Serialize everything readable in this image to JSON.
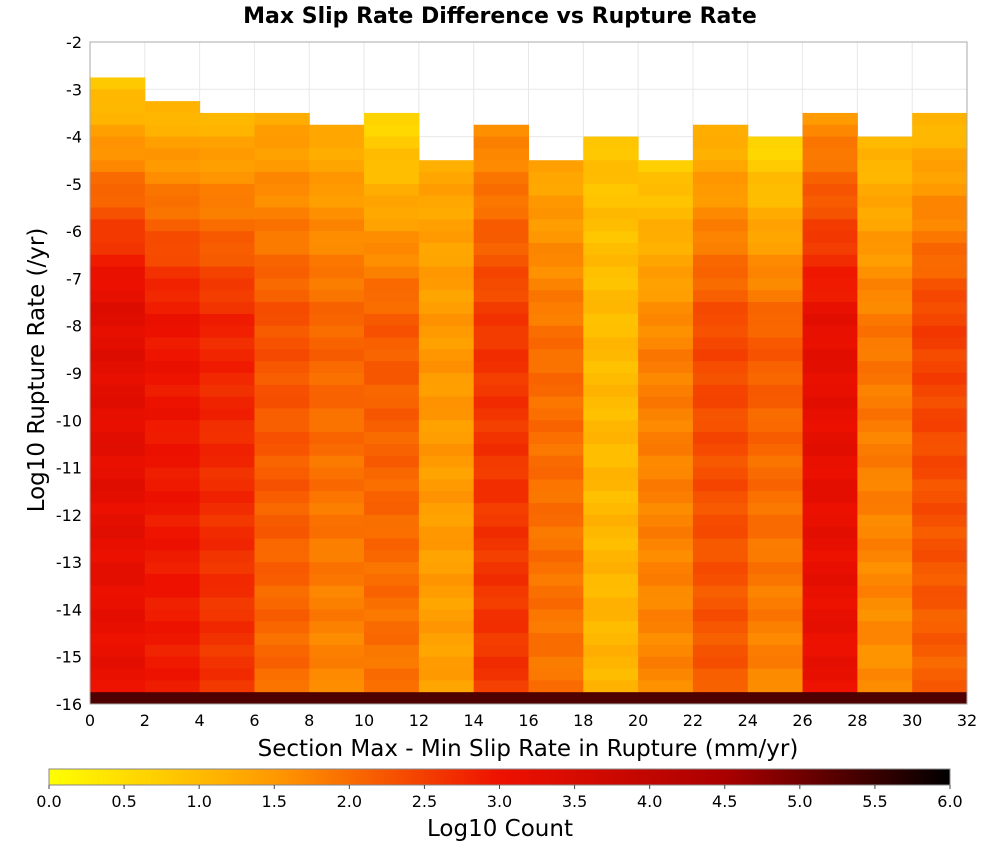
{
  "chart_data": {
    "type": "heatmap",
    "title": "Max Slip Rate Difference vs Rupture Rate",
    "xlabel": "Section Max - Min Slip Rate in Rupture (mm/yr)",
    "ylabel": "Log10 Rupture Rate (/yr)",
    "xlim": [
      0,
      32
    ],
    "ylim": [
      -16,
      -2
    ],
    "x_ticks": [
      "0",
      "2",
      "4",
      "6",
      "8",
      "10",
      "12",
      "14",
      "16",
      "18",
      "20",
      "22",
      "24",
      "26",
      "28",
      "30",
      "32"
    ],
    "y_ticks": [
      "-2",
      "-3",
      "-4",
      "-5",
      "-6",
      "-7",
      "-8",
      "-9",
      "-10",
      "-11",
      "-12",
      "-13",
      "-14",
      "-15",
      "-16"
    ],
    "x_bin_width": 2,
    "y_bin_width": 0.25,
    "grid": true,
    "colorbar": {
      "label": "Log10 Count",
      "min": 0.0,
      "max": 6.0,
      "ticks": [
        "0.0",
        "0.5",
        "1.0",
        "1.5",
        "2.0",
        "2.5",
        "3.0",
        "3.5",
        "4.0",
        "4.5",
        "5.0",
        "5.5",
        "6.0"
      ],
      "colors": [
        "#ffff00",
        "#ff9900",
        "#ee1100",
        "#aa0000",
        "#000000"
      ]
    },
    "columns": [
      {
        "x_start": 0,
        "y_top": -2.75,
        "top_value": 0.8,
        "mid_value": 3.3,
        "bottom_value": 3.1
      },
      {
        "x_start": 2,
        "y_top": -3.25,
        "top_value": 1.0,
        "mid_value": 3.0,
        "bottom_value": 2.9
      },
      {
        "x_start": 4,
        "y_top": -3.5,
        "top_value": 1.1,
        "mid_value": 2.8,
        "bottom_value": 2.6
      },
      {
        "x_start": 6,
        "y_top": -3.5,
        "top_value": 1.3,
        "mid_value": 2.3,
        "bottom_value": 2.0
      },
      {
        "x_start": 8,
        "y_top": -3.75,
        "top_value": 1.2,
        "mid_value": 2.1,
        "bottom_value": 1.7
      },
      {
        "x_start": 10,
        "y_top": -3.5,
        "top_value": 0.6,
        "mid_value": 2.2,
        "bottom_value": 1.9
      },
      {
        "x_start": 12,
        "y_top": -4.5,
        "top_value": 1.3,
        "mid_value": 1.5,
        "bottom_value": 1.4
      },
      {
        "x_start": 14,
        "y_top": -3.75,
        "top_value": 1.6,
        "mid_value": 2.6,
        "bottom_value": 2.6
      },
      {
        "x_start": 16,
        "y_top": -4.5,
        "top_value": 1.3,
        "mid_value": 2.0,
        "bottom_value": 1.9
      },
      {
        "x_start": 18,
        "y_top": -4.0,
        "top_value": 0.9,
        "mid_value": 1.0,
        "bottom_value": 1.1
      },
      {
        "x_start": 20,
        "y_top": -4.5,
        "top_value": 0.8,
        "mid_value": 1.8,
        "bottom_value": 1.7
      },
      {
        "x_start": 22,
        "y_top": -3.75,
        "top_value": 1.1,
        "mid_value": 2.4,
        "bottom_value": 2.2
      },
      {
        "x_start": 24,
        "y_top": -4.0,
        "top_value": 0.6,
        "mid_value": 2.2,
        "bottom_value": 1.7
      },
      {
        "x_start": 26,
        "y_top": -3.5,
        "top_value": 1.6,
        "mid_value": 3.2,
        "bottom_value": 3.1
      },
      {
        "x_start": 28,
        "y_top": -4.0,
        "top_value": 1.0,
        "mid_value": 1.9,
        "bottom_value": 1.6
      },
      {
        "x_start": 30,
        "y_top": -3.5,
        "top_value": 1.0,
        "mid_value": 2.5,
        "bottom_value": 2.1
      }
    ],
    "bottom_row": {
      "y": -16.0,
      "value": 5.3
    }
  }
}
